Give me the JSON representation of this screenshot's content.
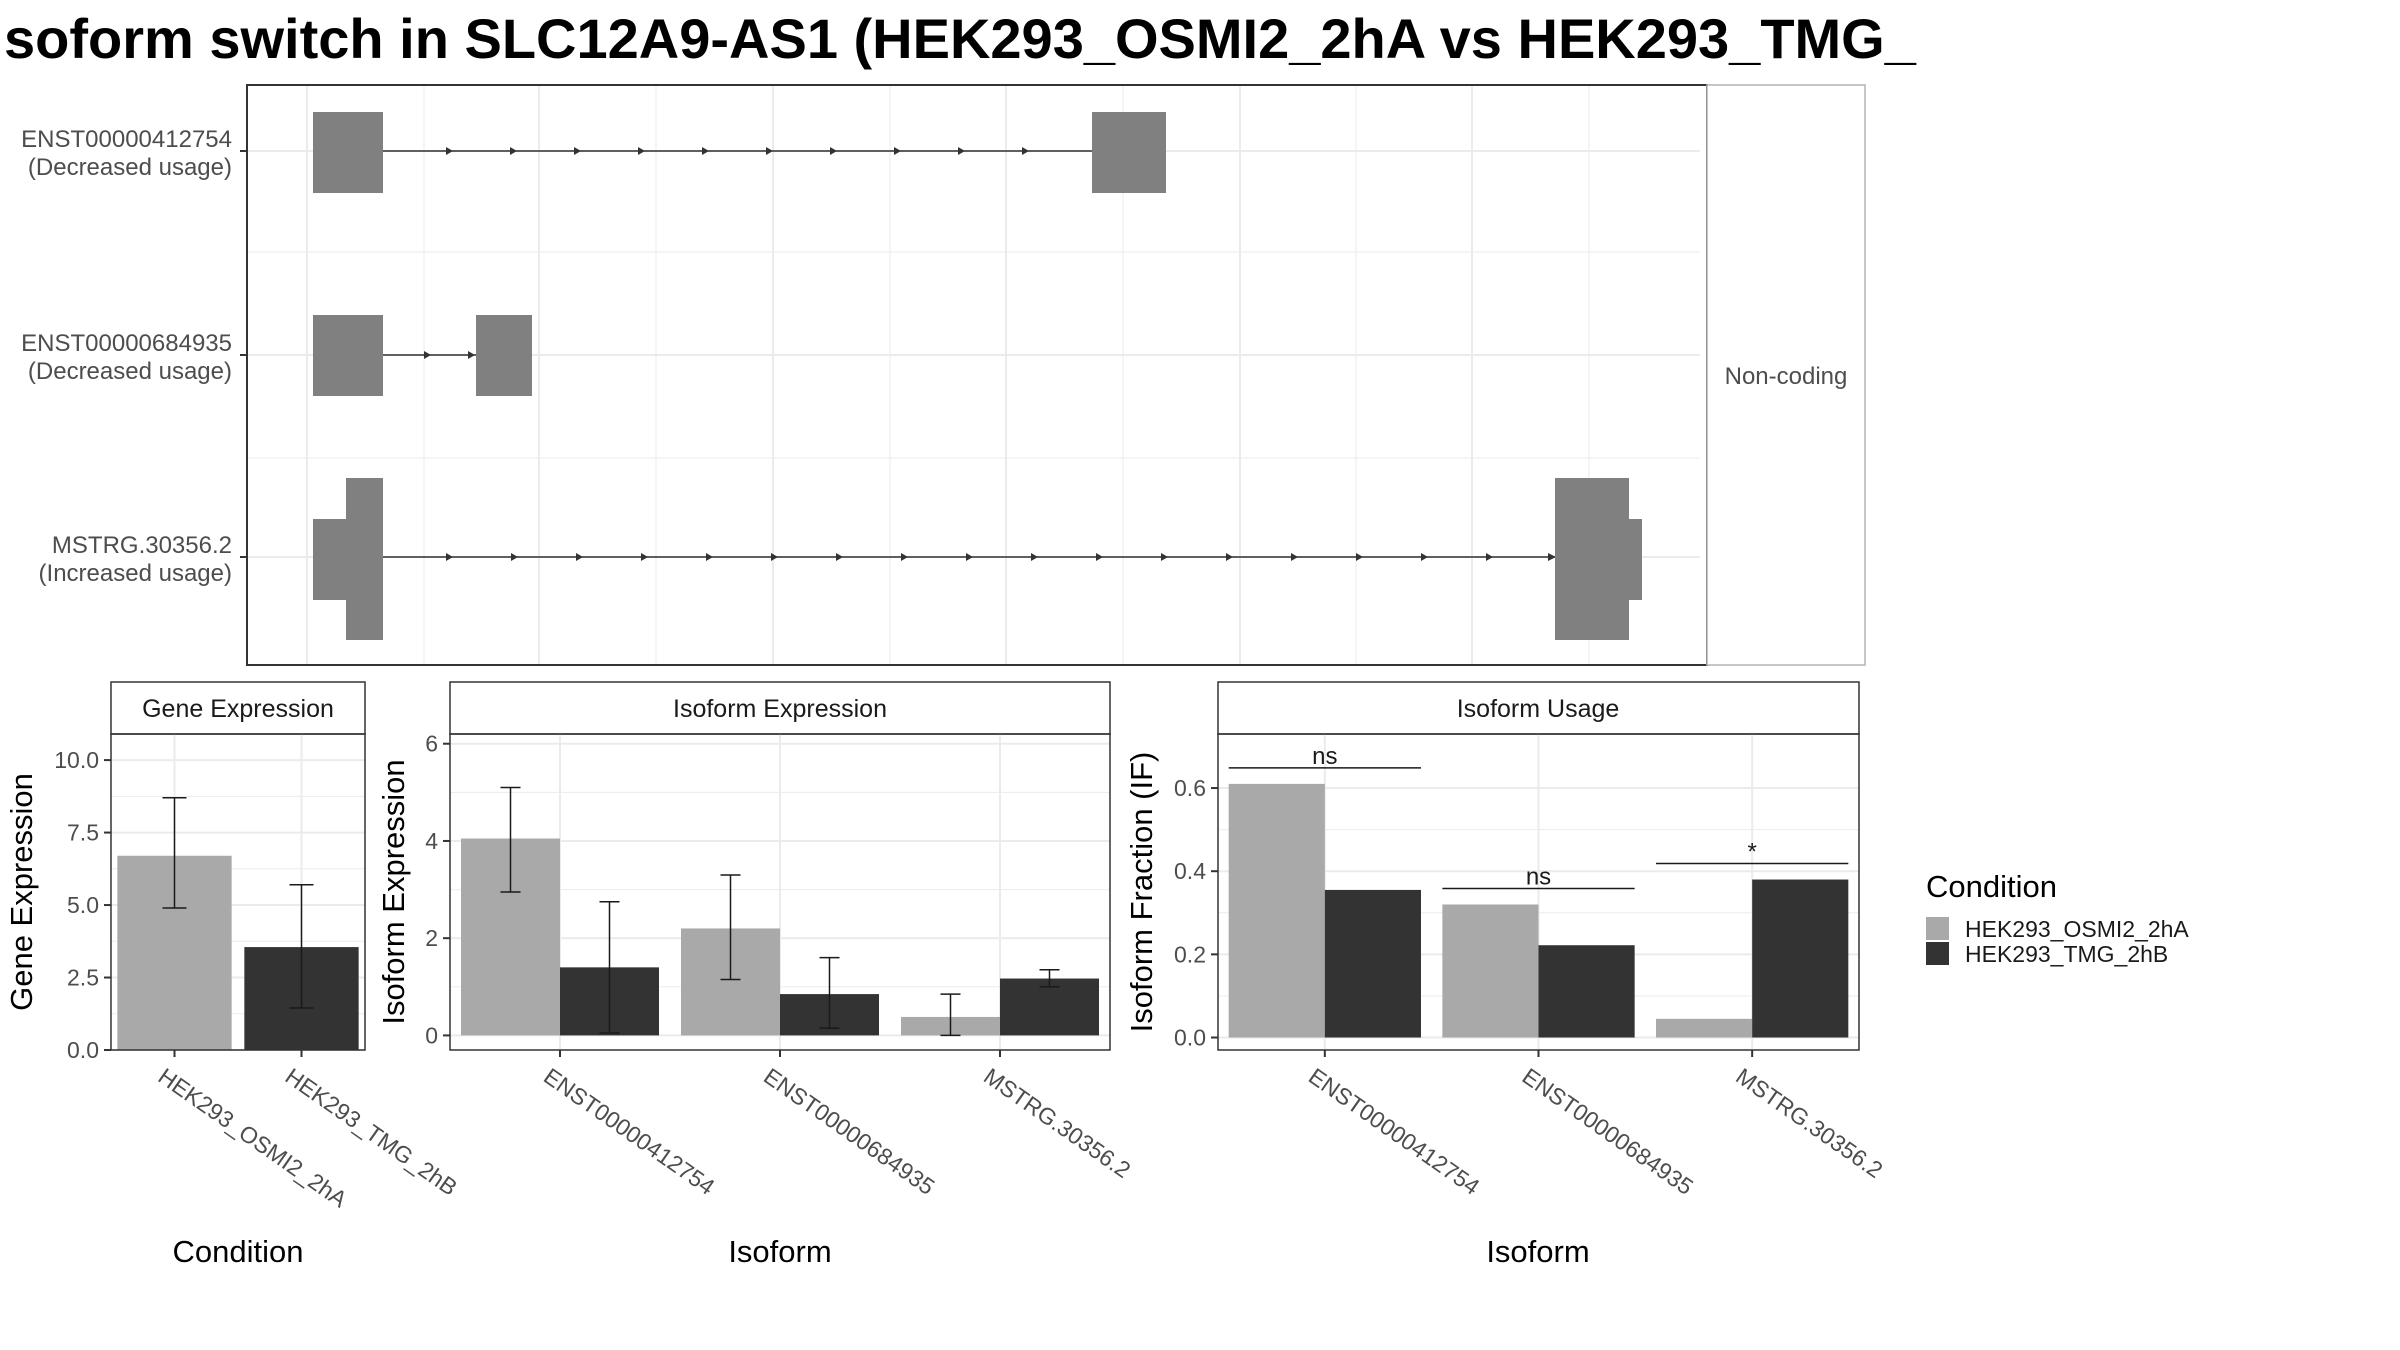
{
  "title": "soform switch in SLC12A9-AS1 (HEK293_OSMI2_2hA vs HEK293_TMG_",
  "colors": {
    "cond_a": "#a9a9a9",
    "cond_b": "#333333",
    "exon": "#808080",
    "grid": "#ebebeb",
    "panel_border": "#333333"
  },
  "structure": {
    "facet_label": "Non-coding",
    "transcripts": [
      {
        "id": "ENST00000412754",
        "note": "(Decreased usage)"
      },
      {
        "id": "ENST00000684935",
        "note": "(Decreased usage)"
      },
      {
        "id": "MSTRG.30356.2",
        "note": "(Increased usage)"
      }
    ]
  },
  "legend": {
    "title": "Condition",
    "items": [
      "HEK293_OSMI2_2hA",
      "HEK293_TMG_2hB"
    ]
  },
  "chart_data": [
    {
      "type": "bar",
      "title": "Gene Expression",
      "xlabel": "Condition",
      "ylabel": "Gene Expression",
      "categories": [
        "HEK293_OSMI2_2hA",
        "HEK293_TMG_2hB"
      ],
      "values": [
        6.7,
        3.55
      ],
      "error_low": [
        4.9,
        1.45
      ],
      "error_high": [
        8.7,
        5.7
      ],
      "ylim": [
        0,
        10.9
      ],
      "yticks": [
        "0.0",
        "2.5",
        "5.0",
        "7.5",
        "10.0"
      ],
      "ytick_values": [
        0,
        2.5,
        5,
        7.5,
        10
      ]
    },
    {
      "type": "bar",
      "title": "Isoform Expression",
      "xlabel": "Isoform",
      "ylabel": "Isoform Expression",
      "categories": [
        "ENST00000412754",
        "ENST00000684935",
        "MSTRG.30356.2"
      ],
      "series": [
        {
          "name": "HEK293_OSMI2_2hA",
          "values": [
            4.05,
            2.2,
            0.38
          ],
          "error_low": [
            2.95,
            1.15,
            0.0
          ],
          "error_high": [
            5.1,
            3.3,
            0.85
          ]
        },
        {
          "name": "HEK293_TMG_2hB",
          "values": [
            1.4,
            0.85,
            1.17
          ],
          "error_low": [
            0.05,
            0.15,
            1.0
          ],
          "error_high": [
            2.75,
            1.6,
            1.35
          ]
        }
      ],
      "ylim": [
        -0.3,
        6.2
      ],
      "yticks": [
        "0",
        "2",
        "4",
        "6"
      ],
      "ytick_values": [
        0,
        2,
        4,
        6
      ]
    },
    {
      "type": "bar",
      "title": "Isoform Usage",
      "xlabel": "Isoform",
      "ylabel": "Isoform Fraction (IF)",
      "categories": [
        "ENST00000412754",
        "ENST00000684935",
        "MSTRG.30356.2"
      ],
      "series": [
        {
          "name": "HEK293_OSMI2_2hA",
          "values": [
            0.61,
            0.32,
            0.045
          ]
        },
        {
          "name": "HEK293_TMG_2hB",
          "values": [
            0.355,
            0.222,
            0.38
          ]
        }
      ],
      "significance": [
        "ns",
        "ns",
        "*"
      ],
      "ylim": [
        -0.03,
        0.73
      ],
      "yticks": [
        "0.0",
        "0.2",
        "0.4",
        "0.6"
      ],
      "ytick_values": [
        0,
        0.2,
        0.4,
        0.6
      ]
    }
  ]
}
